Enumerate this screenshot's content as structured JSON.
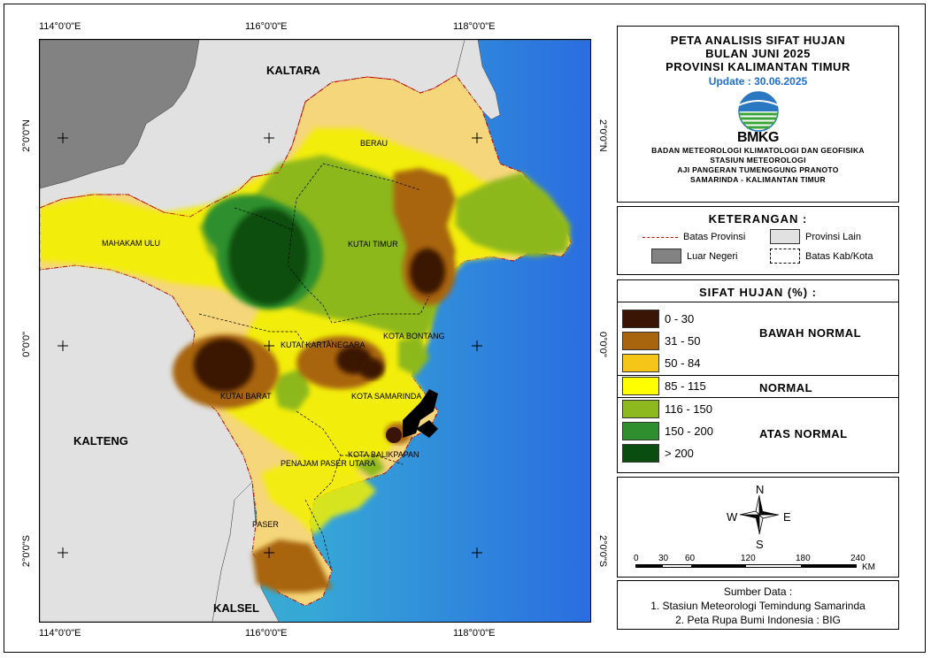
{
  "coordinates": {
    "top": [
      "114°0'0\"E",
      "116°0'0\"E",
      "118°0'0\"E"
    ],
    "bottom": [
      "114°0'0\"E",
      "116°0'0\"E",
      "118°0'0\"E"
    ],
    "left": [
      "2°0'0\"N",
      "0°0'0\"",
      "2°0'0\"S"
    ],
    "right": [
      "2°0'0\"N",
      "0°0'0\"",
      "2°0'0\"S"
    ]
  },
  "map_labels": {
    "provinces": {
      "kaltara": "KALTARA",
      "kalteng": "KALTENG",
      "kalsel": "KALSEL"
    },
    "regencies": {
      "berau": "BERAU",
      "mahakam_ulu": "MAHAKAM ULU",
      "kutai_timur": "KUTAI TIMUR",
      "kutai_kartanegara": "KUTAI KARTANEGARA",
      "kota_bontang": "KOTA BONTANG",
      "kutai_barat": "KUTAI BARAT",
      "kota_samarinda": "KOTA SAMARINDA",
      "kota_balikpapan": "KOTA BALIKPAPAN",
      "penajam_paser_utara": "PENAJAM PASER UTARA",
      "paser": "PASER"
    }
  },
  "title_panel": {
    "lines": [
      "PETA ANALISIS SIFAT HUJAN",
      "BULAN JUNI 2025",
      "PROVINSI KALIMANTAN TIMUR"
    ],
    "update": "Update : 30.06.2025",
    "logo_text": "BMKG",
    "org_lines": [
      "BADAN METEOROLOGI KLIMATOLOGI DAN GEOFISIKA",
      "STASIUN METEOROLOGI",
      "AJI PANGERAN TUMENGGUNG PRANOTO",
      "SAMARINDA - KALIMANTAN TIMUR"
    ]
  },
  "legend": {
    "heading": "KETERANGAN :",
    "items": {
      "batas_provinsi": "Batas Provinsi",
      "provinsi_lain": "Provinsi Lain",
      "luar_negeri": "Luar Negeri",
      "batas_kab": "Batas Kab/Kota"
    },
    "colors": {
      "provinsi_lain": "#e1e1e1",
      "luar_negeri": "#828282",
      "batas_provinsi": "#c00000"
    }
  },
  "rain_class": {
    "heading": "SIFAT HUJAN (%) :",
    "classes": [
      {
        "label": "0 - 30",
        "color": "#3a1405"
      },
      {
        "label": "31 - 50",
        "color": "#a8650e"
      },
      {
        "label": "50 - 84",
        "color": "#f5d67a"
      },
      {
        "label": "85 - 115",
        "color": "#ffff00"
      },
      {
        "label": "116 - 150",
        "color": "#8db81e"
      },
      {
        "label": "150 - 200",
        "color": "#2f8f2f"
      },
      {
        "label": "> 200",
        "color": "#0a4d10"
      }
    ],
    "categories": {
      "below": "BAWAH NORMAL",
      "normal": "NORMAL",
      "above": "ATAS NORMAL"
    }
  },
  "compass": {
    "n": "N",
    "s": "S",
    "e": "E",
    "w": "W"
  },
  "scale": {
    "ticks": [
      "0",
      "30",
      "60",
      "120",
      "180",
      "240"
    ],
    "unit": "KM"
  },
  "source": {
    "heading": "Sumber Data :",
    "lines": [
      "1. Stasiun Meteorologi Temindung Samarinda",
      "2. Peta Rupa Bumi Indonesia : BIG"
    ]
  }
}
